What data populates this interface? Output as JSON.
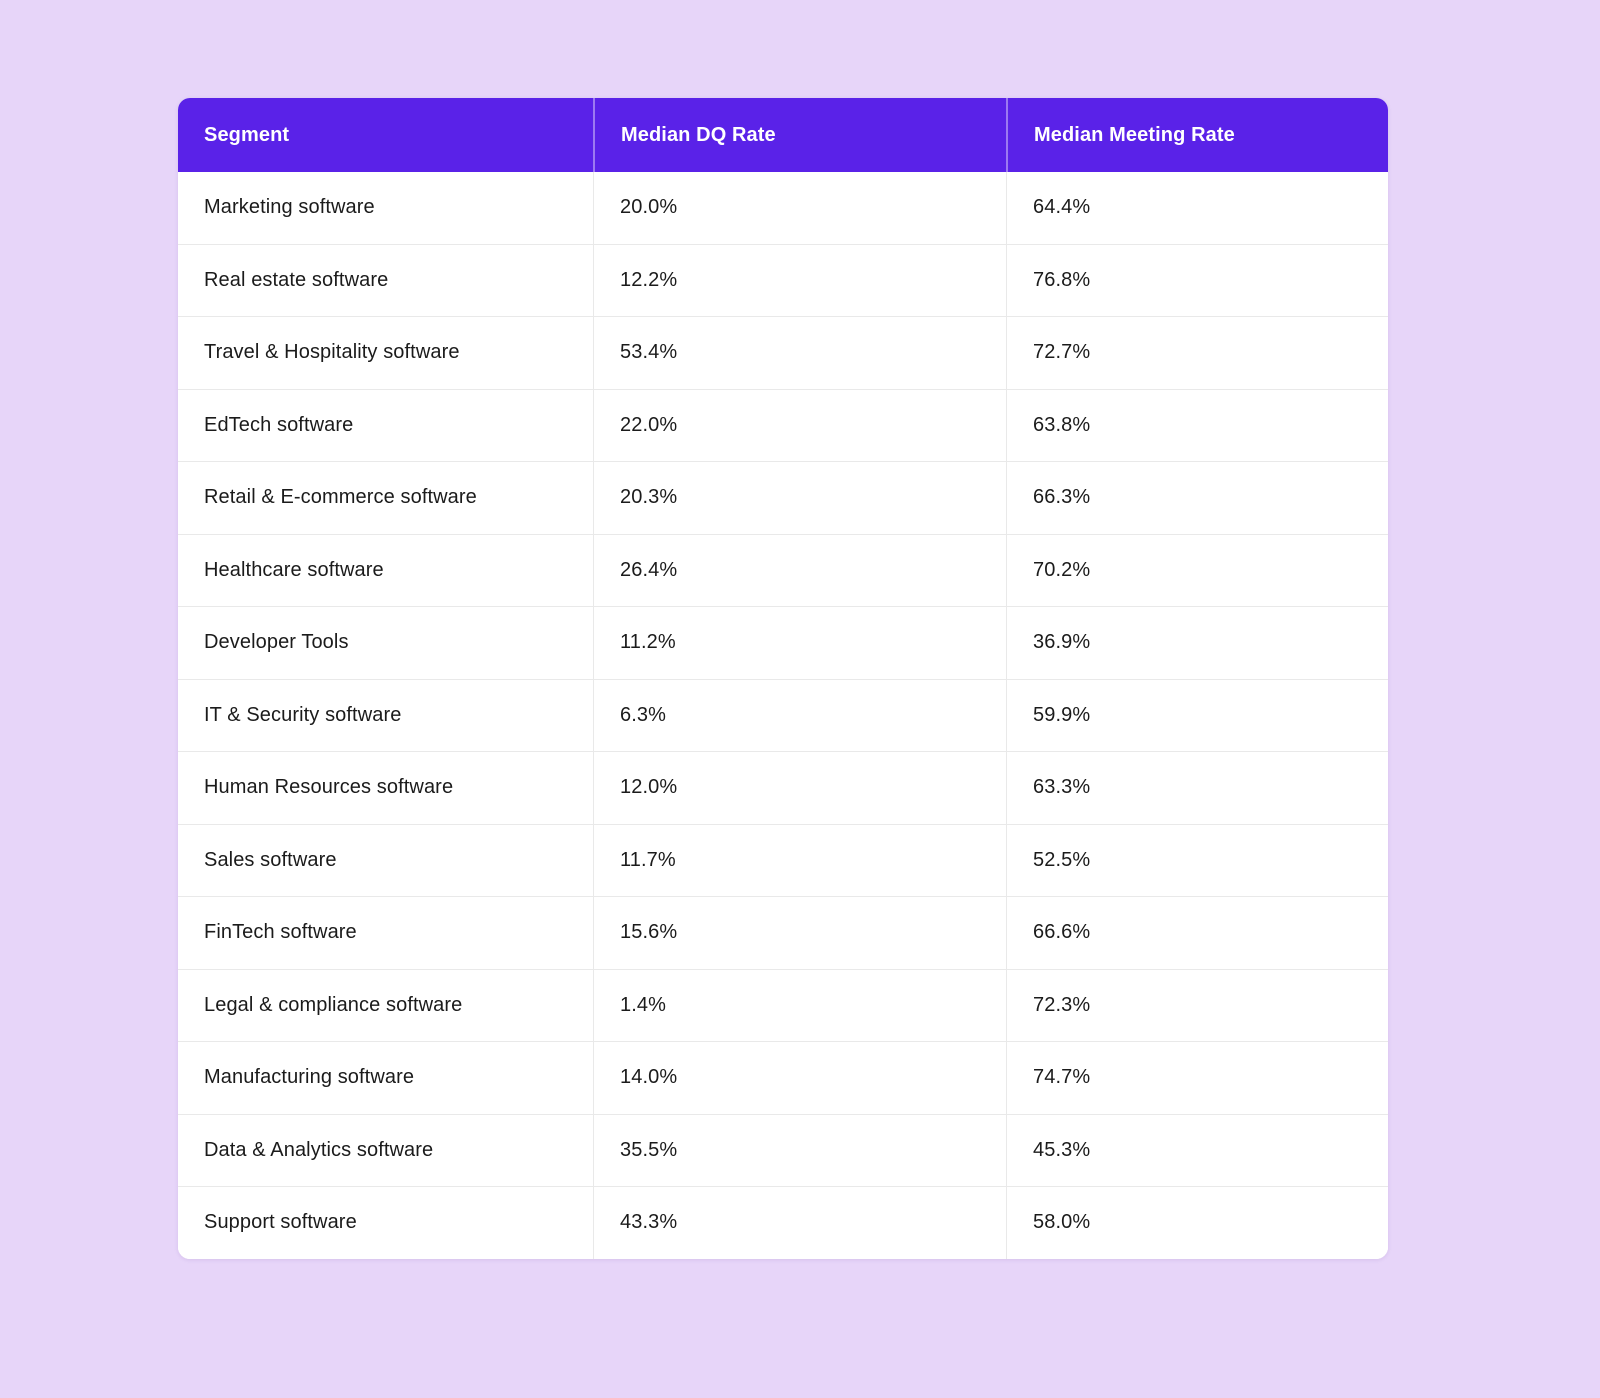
{
  "chart_data": {
    "type": "table",
    "title": "",
    "columns": [
      "Segment",
      "Median DQ Rate",
      "Median Meeting Rate"
    ],
    "rows": [
      [
        "Marketing software",
        "20.0%",
        "64.4%"
      ],
      [
        "Real estate software",
        "12.2%",
        "76.8%"
      ],
      [
        "Travel & Hospitality software",
        "53.4%",
        "72.7%"
      ],
      [
        "EdTech software",
        "22.0%",
        "63.8%"
      ],
      [
        "Retail & E-commerce software",
        "20.3%",
        "66.3%"
      ],
      [
        "Healthcare software",
        "26.4%",
        "70.2%"
      ],
      [
        "Developer Tools",
        "11.2%",
        "36.9%"
      ],
      [
        "IT & Security software",
        "6.3%",
        "59.9%"
      ],
      [
        "Human Resources software",
        "12.0%",
        "63.3%"
      ],
      [
        "Sales software",
        "11.7%",
        "52.5%"
      ],
      [
        "FinTech software",
        "15.6%",
        "66.6%"
      ],
      [
        "Legal & compliance software",
        "1.4%",
        "72.3%"
      ],
      [
        "Manufacturing software",
        "14.0%",
        "74.7%"
      ],
      [
        "Data & Analytics software",
        "35.5%",
        "45.3%"
      ],
      [
        "Support software",
        "43.3%",
        "58.0%"
      ]
    ],
    "colors": {
      "header_background": "#5a22e8",
      "header_text": "#ffffff",
      "body_background": "#ffffff",
      "body_text": "#1b1b1b",
      "page_background": "#e7d5f9",
      "separator": "#e9e9e9"
    },
    "layout_hints": {
      "grid": "row and column separators, light gray",
      "corner_radius": "rounded card"
    }
  }
}
